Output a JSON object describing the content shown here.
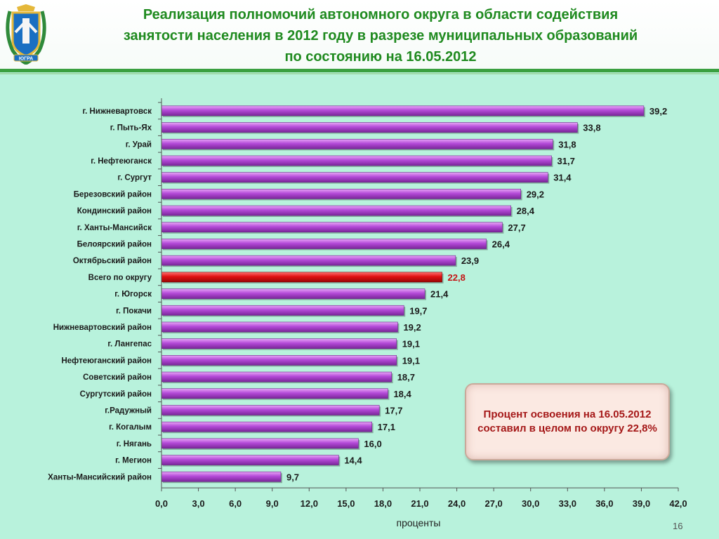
{
  "slide": {
    "title_lines": [
      "Реализация полномочий автономного округа в области содействия",
      "занятости населения в 2012 году в разрезе муниципальных образований",
      "по состоянию на 16.05.2012"
    ],
    "emblem_icon": "coat-of-arms-icon",
    "emblem_text": "ЮГРА",
    "callout_text": "Процент освоения на 16.05.2012 составил в целом по округу 22,8%",
    "page_number": "16"
  },
  "colors": {
    "bar": "#b44ad8",
    "highlight_bar": "#e01010",
    "highlight_label": "#c41414",
    "title": "#1f8a1f",
    "background": "#b8f2dc"
  },
  "chart_data": {
    "type": "bar",
    "orientation": "horizontal",
    "categories": [
      "г. Нижневартовск",
      "г. Пыть-Ях",
      "г. Урай",
      "г. Нефтеюганск",
      "г. Сургут",
      "Березовский район",
      "Кондинский район",
      "г. Ханты-Мансийск",
      "Белоярский  район",
      "Октябрьский район",
      "Всего по округу",
      "г. Югорск",
      "г. Покачи",
      "Нижневартовский район",
      "г. Лангепас",
      "Нефтеюганский район",
      "Советский район",
      "Сургутский район",
      "г.Радужный",
      "г. Когалым",
      "г. Нягань",
      "г. Мегион",
      "Ханты-Мансийский район"
    ],
    "values": [
      39.2,
      33.8,
      31.8,
      31.7,
      31.4,
      29.2,
      28.4,
      27.7,
      26.4,
      23.9,
      22.8,
      21.4,
      19.7,
      19.2,
      19.1,
      19.1,
      18.7,
      18.4,
      17.7,
      17.1,
      16.0,
      14.4,
      9.7
    ],
    "value_labels": [
      "39,2",
      "33,8",
      "31,8",
      "31,7",
      "31,4",
      "29,2",
      "28,4",
      "27,7",
      "26,4",
      "23,9",
      "22,8",
      "21,4",
      "19,7",
      "19,2",
      "19,1",
      "19,1",
      "18,7",
      "18,4",
      "17,7",
      "17,1",
      "16,0",
      "14,4",
      "9,7"
    ],
    "highlight_category": "Всего по округу",
    "xlim": [
      0,
      42
    ],
    "xticks": [
      0,
      3,
      6,
      9,
      12,
      15,
      18,
      21,
      24,
      27,
      30,
      33,
      36,
      39,
      42
    ],
    "xtick_labels": [
      "0,0",
      "3,0",
      "6,0",
      "9,0",
      "12,0",
      "15,0",
      "18,0",
      "21,0",
      "24,0",
      "27,0",
      "30,0",
      "33,0",
      "36,0",
      "39,0",
      "42,0"
    ],
    "xlabel": "проценты",
    "ylabel": "",
    "grid": false,
    "legend": "none"
  }
}
